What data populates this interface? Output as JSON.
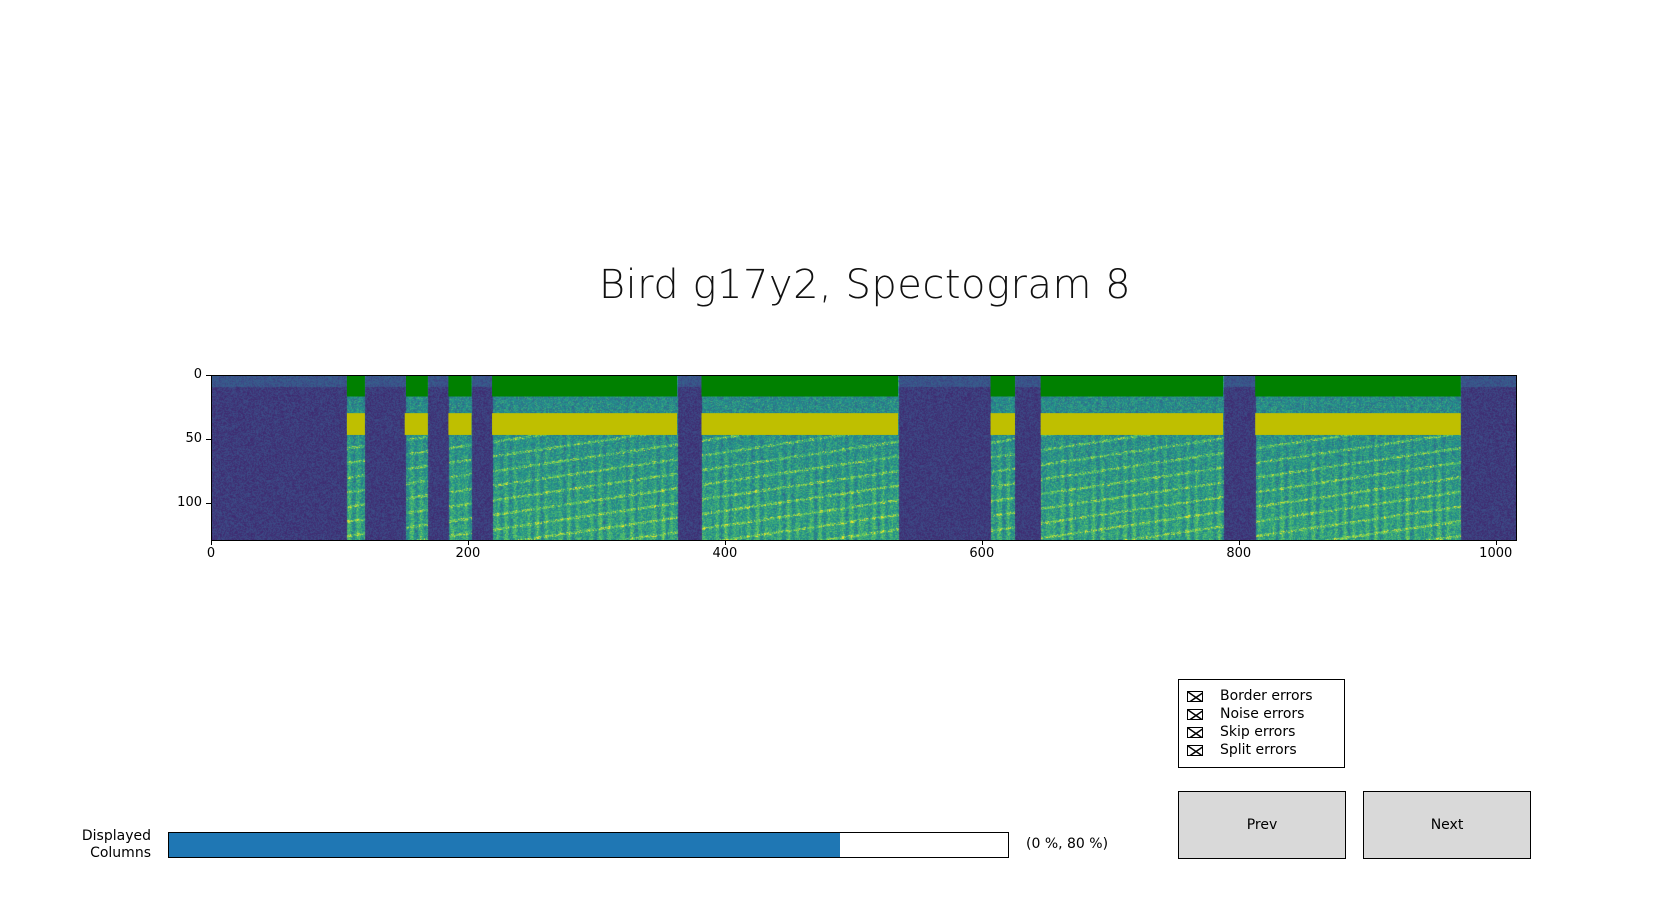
{
  "window": {
    "title": "Bird g17y2, Spectogram 8"
  },
  "chart_data": {
    "type": "heatmap",
    "title": "Bird g17y2, Spectogram 8",
    "colormap": "viridis",
    "x_ticks": [
      0,
      200,
      400,
      600,
      800,
      1000
    ],
    "y_ticks": [
      0,
      50,
      100
    ],
    "xlim": [
      0,
      1015
    ],
    "ylim": [
      128,
      0
    ],
    "series": [
      {
        "color": "#008000",
        "segments": [
          [
            105,
            119
          ],
          [
            151,
            168
          ],
          [
            184,
            202
          ],
          [
            218,
            362
          ],
          [
            381,
            534
          ],
          [
            606,
            625
          ],
          [
            645,
            787
          ],
          [
            812,
            972
          ]
        ]
      },
      {
        "color": "#bfbf00",
        "segments": [
          [
            105,
            119
          ],
          [
            150,
            168
          ],
          [
            184,
            202
          ],
          [
            218,
            362
          ],
          [
            381,
            534
          ],
          [
            606,
            625
          ],
          [
            645,
            787
          ],
          [
            812,
            972
          ]
        ]
      }
    ]
  },
  "slider": {
    "label": "Displayed\nColumns",
    "value_text": "(0 %, 80 %)",
    "low_percent": 0,
    "high_percent": 80,
    "color": "#1f77b4"
  },
  "checkboxes": [
    {
      "label": "Border errors",
      "checked": true
    },
    {
      "label": "Noise errors",
      "checked": true
    },
    {
      "label": "Skip errors",
      "checked": true
    },
    {
      "label": "Split errors",
      "checked": true
    }
  ],
  "buttons": {
    "prev": "Prev",
    "next": "Next"
  }
}
